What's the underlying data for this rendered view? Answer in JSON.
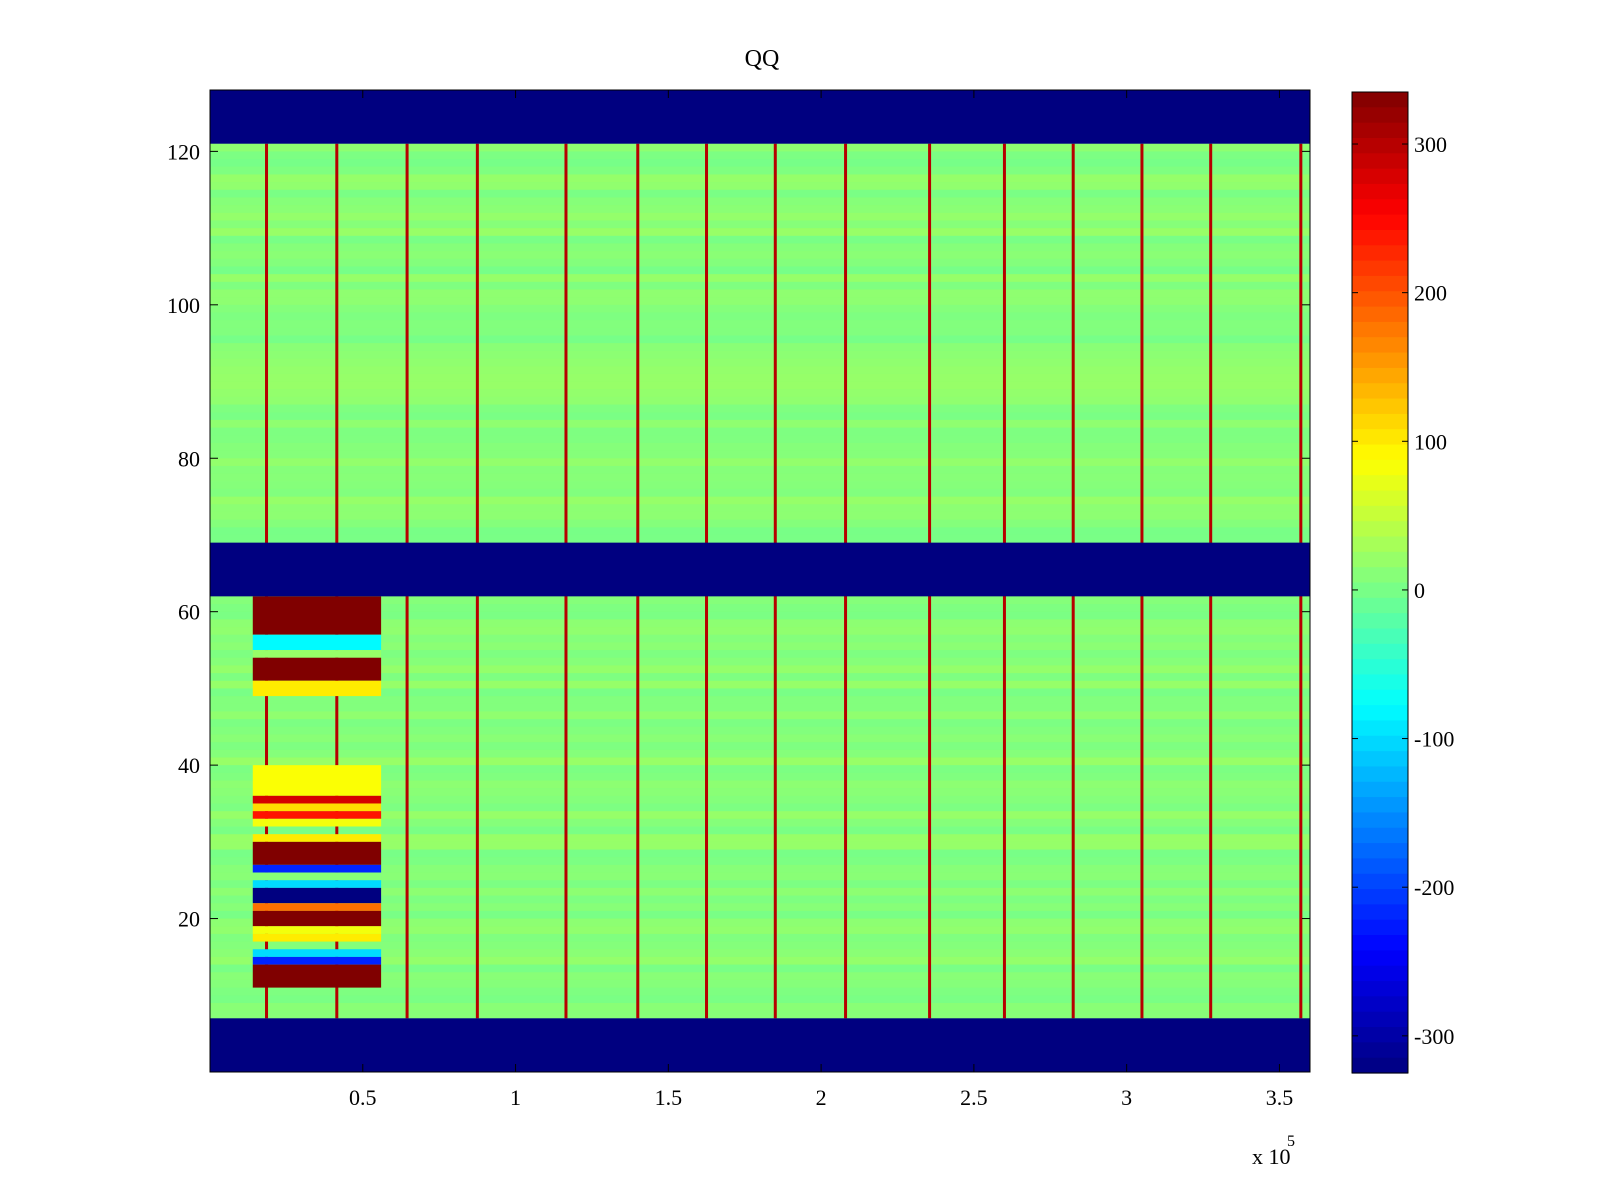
{
  "chart_data": {
    "type": "heatmap",
    "title": "QQ",
    "xlabel": "",
    "ylabel": "",
    "x_multiplier_label": "x 10",
    "x_multiplier_exponent": "5",
    "xlim": [
      0,
      360000
    ],
    "ylim": [
      0,
      128
    ],
    "x_ticks": [
      50000,
      100000,
      150000,
      200000,
      250000,
      300000,
      350000
    ],
    "x_tick_labels": [
      "0.5",
      "1",
      "1.5",
      "2",
      "2.5",
      "3",
      "3.5"
    ],
    "y_ticks": [
      20,
      40,
      60,
      80,
      100,
      120
    ],
    "y_tick_labels": [
      "20",
      "40",
      "60",
      "80",
      "100",
      "120"
    ],
    "colorbar": {
      "colormap": "jet",
      "range": [
        -325,
        335
      ],
      "ticks": [
        -300,
        -200,
        -100,
        0,
        100,
        200,
        300
      ],
      "tick_labels": [
        "-300",
        "-200",
        "-100",
        "0",
        "100",
        "200",
        "300"
      ]
    },
    "saturated_row_bands": [
      {
        "y": [
          0,
          7
        ],
        "value": -325
      },
      {
        "y": [
          62,
          69
        ],
        "value": -325
      },
      {
        "y": [
          121,
          128
        ],
        "value": -325
      }
    ],
    "background_value": 10,
    "vertical_lines": {
      "x": [
        18500,
        41500,
        64500,
        87500,
        116500,
        140000,
        162500,
        185000,
        208000,
        235500,
        260000,
        282500,
        305000,
        327500,
        357000
      ],
      "value": 300,
      "y_range": [
        7,
        121
      ]
    },
    "anomaly_block": {
      "x": [
        14000,
        56000
      ],
      "y": [
        7,
        62
      ],
      "rows": [
        {
          "y": [
            57,
            62
          ],
          "value": 335
        },
        {
          "y": [
            55,
            57
          ],
          "value": -80
        },
        {
          "y": [
            54,
            55
          ],
          "value": 20
        },
        {
          "y": [
            51,
            54
          ],
          "value": 335
        },
        {
          "y": [
            49,
            51
          ],
          "value": 100
        },
        {
          "y": [
            36,
            40
          ],
          "value": 85
        },
        {
          "y": [
            35,
            36
          ],
          "value": 280
        },
        {
          "y": [
            34,
            35
          ],
          "value": 110
        },
        {
          "y": [
            33,
            34
          ],
          "value": 240
        },
        {
          "y": [
            32,
            33
          ],
          "value": 80
        },
        {
          "y": [
            30,
            31
          ],
          "value": 100
        },
        {
          "y": [
            27,
            30
          ],
          "value": 335
        },
        {
          "y": [
            26,
            27
          ],
          "value": -220
        },
        {
          "y": [
            25,
            26
          ],
          "value": 10
        },
        {
          "y": [
            24,
            25
          ],
          "value": -100
        },
        {
          "y": [
            22,
            24
          ],
          "value": -325
        },
        {
          "y": [
            21,
            22
          ],
          "value": 180
        },
        {
          "y": [
            19,
            21
          ],
          "value": 335
        },
        {
          "y": [
            18,
            19
          ],
          "value": 80
        },
        {
          "y": [
            17,
            18
          ],
          "value": 100
        },
        {
          "y": [
            15,
            16
          ],
          "value": -100
        },
        {
          "y": [
            14,
            15
          ],
          "value": -220
        },
        {
          "y": [
            11,
            14
          ],
          "value": 335
        }
      ]
    }
  }
}
